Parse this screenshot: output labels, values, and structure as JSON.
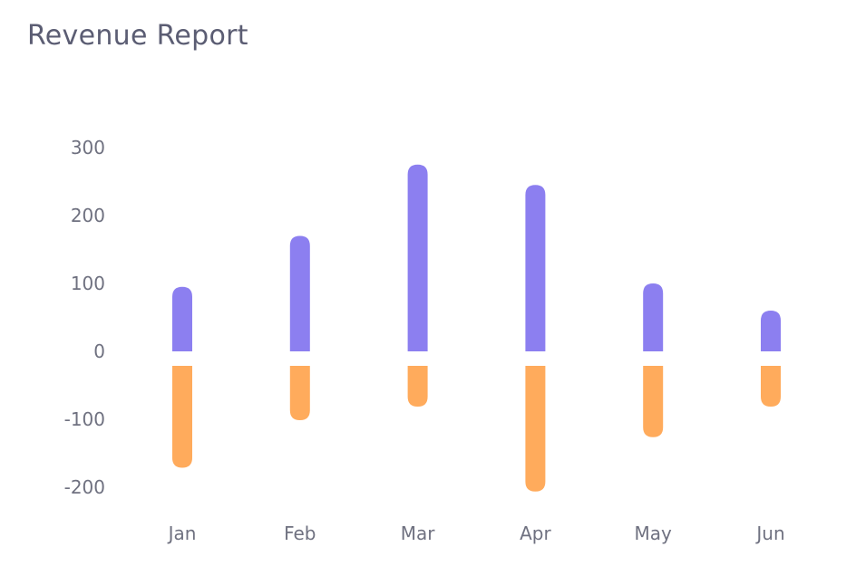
{
  "card": {
    "title": "Revenue Report"
  },
  "chart_data": {
    "type": "bar",
    "title": "Revenue Report",
    "categories": [
      "Jan",
      "Feb",
      "Mar",
      "Apr",
      "May",
      "Jun"
    ],
    "series": [
      {
        "values": [
          95,
          170,
          275,
          245,
          100,
          60
        ],
        "color": "#8c7ff0"
      },
      {
        "values": [
          -150,
          -80,
          -60,
          -185,
          -105,
          -60
        ],
        "color": "#ffab5c"
      }
    ],
    "y_ticks": [
      300,
      200,
      100,
      0,
      -100,
      -200
    ],
    "ylim": [
      -225,
      300
    ],
    "stacked": true,
    "grid": false,
    "legend": "none"
  }
}
